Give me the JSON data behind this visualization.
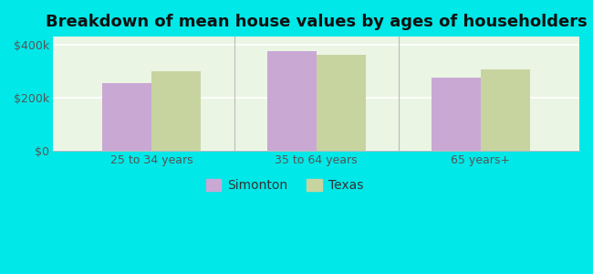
{
  "title": "Breakdown of mean house values by ages of householders",
  "categories": [
    "25 to 34 years",
    "35 to 64 years",
    "65 years+"
  ],
  "simonton_values": [
    255000,
    375000,
    275000
  ],
  "texas_values": [
    300000,
    360000,
    305000
  ],
  "simonton_color": "#c9a8d4",
  "texas_color": "#c8d4a0",
  "ylim": [
    0,
    430000
  ],
  "yticks": [
    0,
    200000,
    400000
  ],
  "ytick_labels": [
    "$0",
    "$200k",
    "$400k"
  ],
  "background_color": "#00e8e8",
  "plot_bg_left": "#d4ecd4",
  "plot_bg_right": "#f5f9f0",
  "legend_labels": [
    "Simonton",
    "Texas"
  ],
  "bar_width": 0.3,
  "title_fontsize": 13,
  "tick_fontsize": 9,
  "legend_fontsize": 10
}
